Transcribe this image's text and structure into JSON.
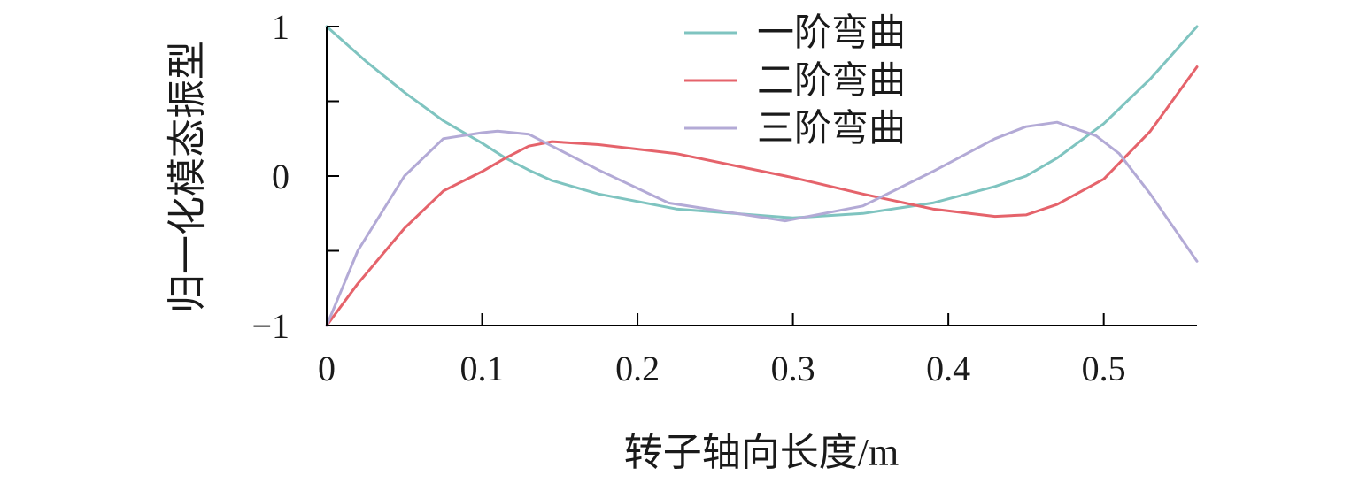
{
  "chart_data": {
    "type": "line",
    "title": "",
    "xlabel": "转子轴向长度/m",
    "ylabel": "归一化模态振型",
    "xlim": [
      0,
      0.56
    ],
    "ylim": [
      -1,
      1
    ],
    "x_ticks": [
      0,
      0.1,
      0.2,
      0.3,
      0.4,
      0.5
    ],
    "x_tick_labels": [
      "0",
      "0.1",
      "0.2",
      "0.3",
      "0.4",
      "0.5"
    ],
    "y_ticks": [
      -1,
      -0.5,
      0,
      0.5,
      1
    ],
    "y_tick_labels": [
      {
        "value": 1,
        "label": "1"
      },
      {
        "value": 0,
        "label": "0"
      },
      {
        "value": -1,
        "label": "−1"
      }
    ],
    "legend_position": "top-center",
    "series": [
      {
        "name": "一阶弯曲",
        "color": "#7fc4c0",
        "x": [
          0,
          0.025,
          0.05,
          0.075,
          0.1,
          0.115,
          0.13,
          0.145,
          0.175,
          0.225,
          0.3,
          0.345,
          0.39,
          0.43,
          0.45,
          0.47,
          0.5,
          0.53,
          0.56
        ],
        "y": [
          1.0,
          0.77,
          0.56,
          0.37,
          0.22,
          0.12,
          0.04,
          -0.03,
          -0.12,
          -0.22,
          -0.28,
          -0.25,
          -0.18,
          -0.07,
          0.0,
          0.12,
          0.35,
          0.65,
          1.0
        ]
      },
      {
        "name": "二阶弯曲",
        "color": "#e5636b",
        "x": [
          0,
          0.02,
          0.05,
          0.075,
          0.1,
          0.115,
          0.13,
          0.145,
          0.175,
          0.225,
          0.3,
          0.345,
          0.39,
          0.43,
          0.45,
          0.47,
          0.5,
          0.53,
          0.56
        ],
        "y": [
          -1.0,
          -0.72,
          -0.35,
          -0.1,
          0.03,
          0.12,
          0.2,
          0.23,
          0.21,
          0.15,
          -0.01,
          -0.12,
          -0.22,
          -0.27,
          -0.26,
          -0.19,
          -0.02,
          0.3,
          0.73
        ]
      },
      {
        "name": "三阶弯曲",
        "color": "#b3aad6",
        "x": [
          0,
          0.02,
          0.05,
          0.075,
          0.1,
          0.11,
          0.13,
          0.145,
          0.175,
          0.22,
          0.295,
          0.345,
          0.39,
          0.43,
          0.45,
          0.47,
          0.495,
          0.51,
          0.53,
          0.56
        ],
        "y": [
          -1.0,
          -0.5,
          0.0,
          0.25,
          0.29,
          0.3,
          0.28,
          0.2,
          0.04,
          -0.18,
          -0.3,
          -0.2,
          0.03,
          0.25,
          0.33,
          0.36,
          0.27,
          0.15,
          -0.12,
          -0.57
        ]
      }
    ]
  }
}
